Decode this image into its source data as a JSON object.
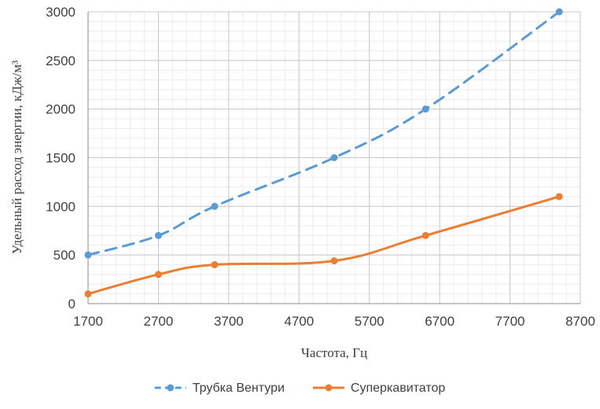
{
  "chart_data": {
    "type": "line",
    "title": "",
    "xlabel": "Частота, Гц",
    "ylabel": "Удельный расход энергии, кДж/м³",
    "xlim": [
      1700,
      8700
    ],
    "ylim": [
      0,
      3000
    ],
    "x_ticks": [
      1700,
      2700,
      3700,
      4700,
      5700,
      6700,
      7700,
      8700
    ],
    "y_ticks": [
      0,
      500,
      1000,
      1500,
      2000,
      2500,
      3000
    ],
    "x_tick_labels": [
      "1700",
      "2700",
      "3700",
      "4700",
      "5700",
      "6700",
      "7700",
      "8700"
    ],
    "y_tick_labels": [
      "0",
      "500",
      "1000",
      "1500",
      "2000",
      "2500",
      "3000"
    ],
    "grid": {
      "major": true,
      "minor": true
    },
    "legend_position": "bottom",
    "series": [
      {
        "name": "Трубка Вентури",
        "color": "#5b9bd5",
        "line_style": "dashed",
        "marker": "circle",
        "smooth": true,
        "x": [
          1700,
          2700,
          3500,
          5200,
          6500,
          8400
        ],
        "y": [
          500,
          700,
          1000,
          1500,
          2000,
          3000
        ]
      },
      {
        "name": "Суперкавитатор",
        "color": "#ed7d31",
        "line_style": "solid",
        "marker": "circle",
        "smooth": true,
        "x": [
          1700,
          2700,
          3500,
          5200,
          6500,
          8400
        ],
        "y": [
          100,
          300,
          400,
          440,
          700,
          1100
        ]
      }
    ]
  }
}
